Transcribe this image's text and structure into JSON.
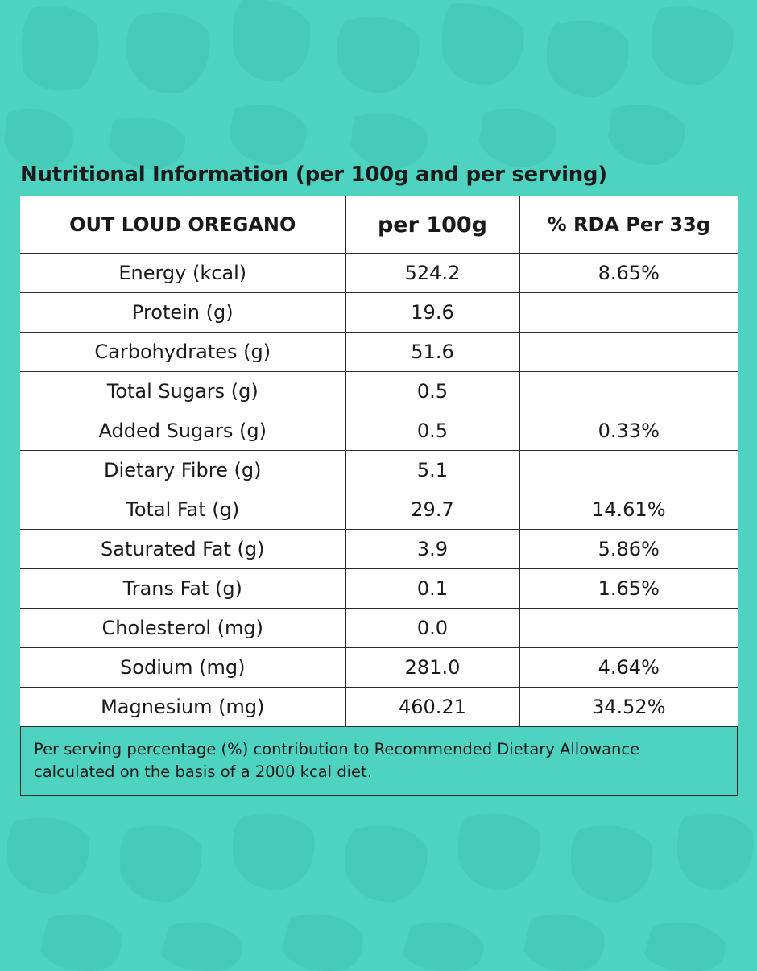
{
  "title": "Nutritional Information (per 100g and per serving)",
  "colors": {
    "background": "#4ed3c1",
    "pattern": "#46c9b7",
    "table_bg": "#ffffff",
    "border": "#2b2b2b"
  },
  "table": {
    "headers": [
      "OUT LOUD OREGANO",
      "per 100g",
      "% RDA Per 33g"
    ],
    "rows": [
      {
        "nutrient": "Energy (kcal)",
        "per100g": "524.2",
        "rda": "8.65%"
      },
      {
        "nutrient": "Protein (g)",
        "per100g": "19.6",
        "rda": ""
      },
      {
        "nutrient": "Carbohydrates (g)",
        "per100g": "51.6",
        "rda": ""
      },
      {
        "nutrient": "Total Sugars (g)",
        "per100g": "0.5",
        "rda": ""
      },
      {
        "nutrient": "Added Sugars (g)",
        "per100g": "0.5",
        "rda": "0.33%"
      },
      {
        "nutrient": "Dietary Fibre (g)",
        "per100g": "5.1",
        "rda": ""
      },
      {
        "nutrient": "Total Fat (g)",
        "per100g": "29.7",
        "rda": "14.61%"
      },
      {
        "nutrient": "Saturated Fat (g)",
        "per100g": "3.9",
        "rda": "5.86%"
      },
      {
        "nutrient": "Trans Fat (g)",
        "per100g": "0.1",
        "rda": "1.65%"
      },
      {
        "nutrient": "Cholesterol (mg)",
        "per100g": "0.0",
        "rda": ""
      },
      {
        "nutrient": "Sodium (mg)",
        "per100g": "281.0",
        "rda": "4.64%"
      },
      {
        "nutrient": "Magnesium (mg)",
        "per100g": "460.21",
        "rda": "34.52%"
      }
    ]
  },
  "footnote": "Per serving percentage (%) contribution to Recommended Dietary Allowance calculated on the basis of a 2000 kcal diet."
}
